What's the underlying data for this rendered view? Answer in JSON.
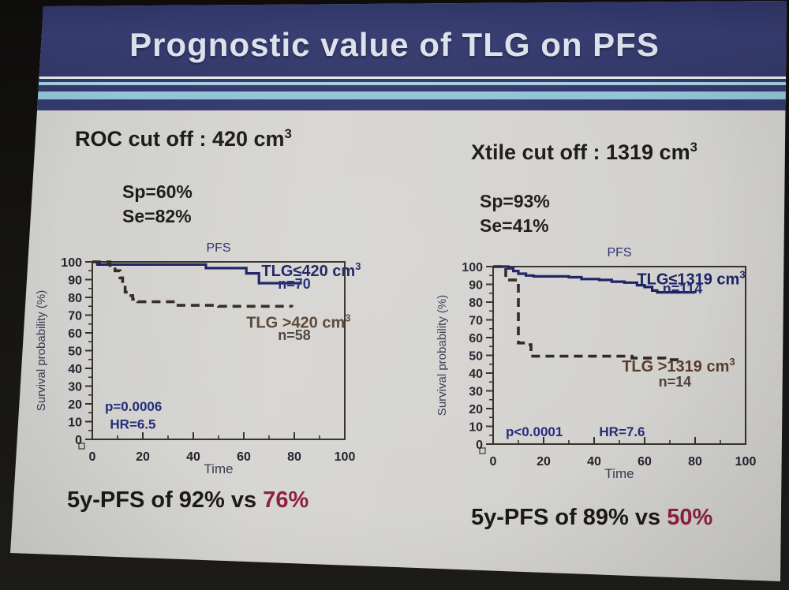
{
  "title": "Prognostic value of TLG on PFS",
  "panels": {
    "left": {
      "header": "ROC cut off : 420 cm",
      "header_sup": "3",
      "sp": "Sp=60%",
      "se": "Se=82%",
      "summary_prefix": "5y-PFS of 92% vs ",
      "summary_value": "76%"
    },
    "right": {
      "header": "Xtile cut off : 1319 cm",
      "header_sup": "3",
      "sp": "Sp=93%",
      "se": "Se=41%",
      "summary_prefix": "5y-PFS of 89% vs ",
      "summary_value": "50%"
    }
  },
  "colors": {
    "band": "#343a6d",
    "stripe_light": "#92c4da",
    "slide_bg": "#d4d3d0",
    "photo_bg": "#171614",
    "title_text": "#dde1ec",
    "text": "#1c1a18",
    "highlight": "#8e2040",
    "annotation": "#232d7a",
    "frame": "#36322b",
    "tick_label": "#26222e",
    "axis_label": "#3a3a52",
    "chart_title": "#2a3070"
  },
  "chart_data": [
    {
      "type": "line",
      "subtype": "kaplan-meier-step",
      "title": "PFS",
      "xlabel": "Time",
      "ylabel": "Survival probability (%)",
      "xlim": [
        0,
        100
      ],
      "ylim": [
        0,
        100
      ],
      "xticks": [
        0,
        20,
        40,
        60,
        80,
        100
      ],
      "yticks": [
        0,
        10,
        20,
        30,
        40,
        50,
        60,
        70,
        80,
        90,
        100
      ],
      "x_minor_step": 10,
      "y_minor_step": 5,
      "grid": false,
      "series": [
        {
          "name": "TLG≤420 cm",
          "name_sup": "3",
          "n": "n=70",
          "style": "solid",
          "color": "#1b2163",
          "label_color": "#1b2163",
          "n_color": "#232d7a",
          "label_pos": [
            67,
            92
          ],
          "n_pos": [
            80,
            85
          ],
          "points": [
            [
              0,
              100
            ],
            [
              2,
              98.5
            ],
            [
              45,
              96.5
            ],
            [
              61,
              93.5
            ],
            [
              66,
              88
            ],
            [
              83,
              88
            ]
          ]
        },
        {
          "name": "TLG >420 cm",
          "name_sup": "3",
          "n": "n=58",
          "style": "dashed",
          "color": "#352a22",
          "label_color": "#5a4430",
          "n_color": "#4e4238",
          "label_pos": [
            61,
            63
          ],
          "n_pos": [
            80,
            56
          ],
          "points": [
            [
              0,
              100
            ],
            [
              7,
              98
            ],
            [
              9,
              95
            ],
            [
              11,
              91
            ],
            [
              12,
              87
            ],
            [
              13,
              83
            ],
            [
              14,
              81
            ],
            [
              16,
              79
            ],
            [
              18,
              77.5
            ],
            [
              33,
              75.5
            ],
            [
              50,
              75
            ],
            [
              79,
              74.5
            ]
          ]
        }
      ],
      "annotations": [
        {
          "text": "p=0.0006",
          "pos": [
            5,
            16
          ]
        },
        {
          "text": "HR=6.5",
          "pos": [
            7,
            6
          ]
        }
      ]
    },
    {
      "type": "line",
      "subtype": "kaplan-meier-step",
      "title": "PFS",
      "xlabel": "Time",
      "ylabel": "Survival probability (%)",
      "xlim": [
        0,
        100
      ],
      "ylim": [
        0,
        100
      ],
      "xticks": [
        0,
        20,
        40,
        60,
        80,
        100
      ],
      "yticks": [
        0,
        10,
        20,
        30,
        40,
        50,
        60,
        70,
        80,
        90,
        100
      ],
      "x_minor_step": 10,
      "y_minor_step": 5,
      "grid": false,
      "series": [
        {
          "name": "TLG≤1319 cm",
          "name_sup": "3",
          "n": "n=114",
          "style": "solid",
          "color": "#1b2163",
          "label_color": "#1b2163",
          "n_color": "#232d7a",
          "label_pos": [
            57,
            90
          ],
          "n_pos": [
            75,
            85
          ],
          "points": [
            [
              0,
              100
            ],
            [
              6,
              99
            ],
            [
              8,
              97.5
            ],
            [
              10,
              96
            ],
            [
              13,
              95
            ],
            [
              16,
              94.5
            ],
            [
              30,
              94
            ],
            [
              35,
              93
            ],
            [
              42,
              92.5
            ],
            [
              47,
              91.5
            ],
            [
              52,
              91
            ],
            [
              57,
              89.5
            ],
            [
              60,
              88.5
            ],
            [
              63,
              86.5
            ],
            [
              65,
              85.5
            ],
            [
              80,
              85
            ]
          ]
        },
        {
          "name": "TLG >1319 cm",
          "name_sup": "3",
          "n": "n=14",
          "style": "dashed",
          "color": "#2e2824",
          "label_color": "#5a3b2c",
          "n_color": "#4e4238",
          "label_pos": [
            51,
            41
          ],
          "n_pos": [
            72,
            32.5
          ],
          "points": [
            [
              0,
              100
            ],
            [
              5,
              92.5
            ],
            [
              10,
              57
            ],
            [
              13,
              56
            ],
            [
              15,
              49.5
            ],
            [
              55,
              48.5
            ],
            [
              68,
              47.5
            ],
            [
              75,
              47.5
            ]
          ]
        }
      ],
      "annotations": [
        {
          "text": "p<0.0001",
          "pos": [
            5,
            4.5
          ]
        },
        {
          "text": "HR=7.6",
          "pos": [
            42,
            4.5
          ]
        }
      ]
    }
  ]
}
